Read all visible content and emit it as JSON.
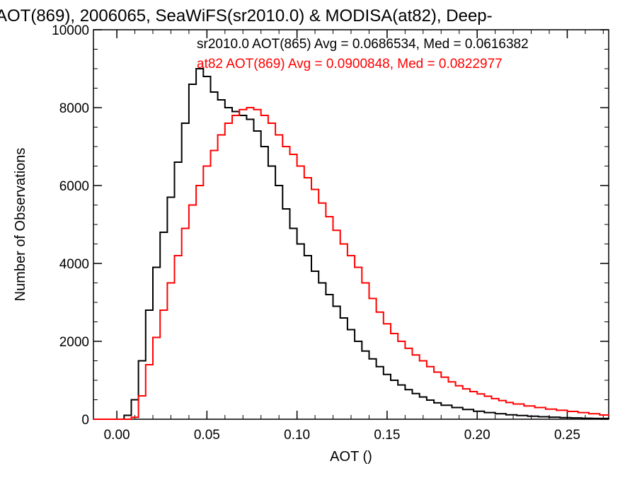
{
  "chart_data": {
    "type": "line",
    "title": "AOT(869), 2006065, SeaWiFS(sr2010.0) & MODISA(at82), Deep-",
    "xlabel": "AOT ()",
    "ylabel": "Number of Observations",
    "xlim": [
      -0.013,
      0.273
    ],
    "ylim": [
      0,
      10000
    ],
    "x_ticks": [
      0.0,
      0.05,
      0.1,
      0.15,
      0.2,
      0.25
    ],
    "x_tick_labels": [
      "0.00",
      "0.05",
      "0.10",
      "0.15",
      "0.20",
      "0.25"
    ],
    "y_ticks": [
      0,
      2000,
      4000,
      6000,
      8000,
      10000
    ],
    "y_tick_labels": [
      "0",
      "2000",
      "4000",
      "6000",
      "8000",
      "10000"
    ],
    "grid": false,
    "step": true,
    "series": [
      {
        "name": "sr2010.0",
        "color": "#000000",
        "annotation": "sr2010.0 AOT(865) Avg = 0.0686534, Med = 0.0616382",
        "points": [
          [
            -0.013,
            0
          ],
          [
            0.0,
            0
          ],
          [
            0.004,
            100
          ],
          [
            0.008,
            500
          ],
          [
            0.012,
            1500
          ],
          [
            0.016,
            2800
          ],
          [
            0.02,
            3900
          ],
          [
            0.024,
            4800
          ],
          [
            0.028,
            5700
          ],
          [
            0.032,
            6600
          ],
          [
            0.036,
            7600
          ],
          [
            0.04,
            8600
          ],
          [
            0.044,
            9000
          ],
          [
            0.048,
            8800
          ],
          [
            0.052,
            8400
          ],
          [
            0.056,
            8200
          ],
          [
            0.06,
            8000
          ],
          [
            0.064,
            7900
          ],
          [
            0.068,
            7800
          ],
          [
            0.072,
            7700
          ],
          [
            0.076,
            7400
          ],
          [
            0.08,
            7000
          ],
          [
            0.084,
            6500
          ],
          [
            0.088,
            6000
          ],
          [
            0.092,
            5400
          ],
          [
            0.096,
            4900
          ],
          [
            0.1,
            4500
          ],
          [
            0.104,
            4200
          ],
          [
            0.108,
            3800
          ],
          [
            0.112,
            3500
          ],
          [
            0.116,
            3200
          ],
          [
            0.12,
            2900
          ],
          [
            0.124,
            2600
          ],
          [
            0.128,
            2300
          ],
          [
            0.132,
            2000
          ],
          [
            0.136,
            1750
          ],
          [
            0.14,
            1550
          ],
          [
            0.144,
            1350
          ],
          [
            0.148,
            1150
          ],
          [
            0.152,
            1000
          ],
          [
            0.156,
            880
          ],
          [
            0.16,
            760
          ],
          [
            0.164,
            660
          ],
          [
            0.168,
            570
          ],
          [
            0.172,
            490
          ],
          [
            0.176,
            420
          ],
          [
            0.18,
            360
          ],
          [
            0.186,
            300
          ],
          [
            0.192,
            250
          ],
          [
            0.198,
            205
          ],
          [
            0.204,
            170
          ],
          [
            0.21,
            140
          ],
          [
            0.216,
            115
          ],
          [
            0.222,
            95
          ],
          [
            0.228,
            78
          ],
          [
            0.234,
            64
          ],
          [
            0.24,
            52
          ],
          [
            0.246,
            42
          ],
          [
            0.252,
            34
          ],
          [
            0.258,
            26
          ],
          [
            0.264,
            20
          ],
          [
            0.273,
            15
          ]
        ]
      },
      {
        "name": "at82",
        "color": "#ff0000",
        "annotation": "at82 AOT(869) Avg = 0.0900848, Med = 0.0822977",
        "points": [
          [
            -0.013,
            0
          ],
          [
            0.004,
            0
          ],
          [
            0.008,
            50
          ],
          [
            0.012,
            600
          ],
          [
            0.016,
            1400
          ],
          [
            0.02,
            2100
          ],
          [
            0.024,
            2800
          ],
          [
            0.028,
            3500
          ],
          [
            0.032,
            4200
          ],
          [
            0.036,
            4900
          ],
          [
            0.04,
            5500
          ],
          [
            0.044,
            6000
          ],
          [
            0.048,
            6500
          ],
          [
            0.052,
            6900
          ],
          [
            0.056,
            7300
          ],
          [
            0.06,
            7600
          ],
          [
            0.064,
            7800
          ],
          [
            0.068,
            7950
          ],
          [
            0.072,
            8000
          ],
          [
            0.076,
            7950
          ],
          [
            0.08,
            7800
          ],
          [
            0.084,
            7600
          ],
          [
            0.088,
            7300
          ],
          [
            0.092,
            7000
          ],
          [
            0.096,
            6800
          ],
          [
            0.1,
            6500
          ],
          [
            0.104,
            6200
          ],
          [
            0.108,
            5900
          ],
          [
            0.112,
            5550
          ],
          [
            0.116,
            5200
          ],
          [
            0.12,
            4850
          ],
          [
            0.124,
            4500
          ],
          [
            0.128,
            4200
          ],
          [
            0.132,
            3900
          ],
          [
            0.136,
            3500
          ],
          [
            0.14,
            3100
          ],
          [
            0.144,
            2750
          ],
          [
            0.148,
            2450
          ],
          [
            0.152,
            2200
          ],
          [
            0.156,
            2000
          ],
          [
            0.16,
            1820
          ],
          [
            0.164,
            1650
          ],
          [
            0.168,
            1500
          ],
          [
            0.172,
            1350
          ],
          [
            0.176,
            1210
          ],
          [
            0.18,
            1080
          ],
          [
            0.184,
            960
          ],
          [
            0.188,
            860
          ],
          [
            0.192,
            780
          ],
          [
            0.196,
            710
          ],
          [
            0.2,
            650
          ],
          [
            0.204,
            590
          ],
          [
            0.208,
            530
          ],
          [
            0.212,
            480
          ],
          [
            0.216,
            430
          ],
          [
            0.22,
            390
          ],
          [
            0.226,
            340
          ],
          [
            0.232,
            300
          ],
          [
            0.238,
            260
          ],
          [
            0.244,
            230
          ],
          [
            0.25,
            200
          ],
          [
            0.256,
            170
          ],
          [
            0.262,
            140
          ],
          [
            0.268,
            110
          ],
          [
            0.273,
            90
          ]
        ]
      }
    ]
  }
}
